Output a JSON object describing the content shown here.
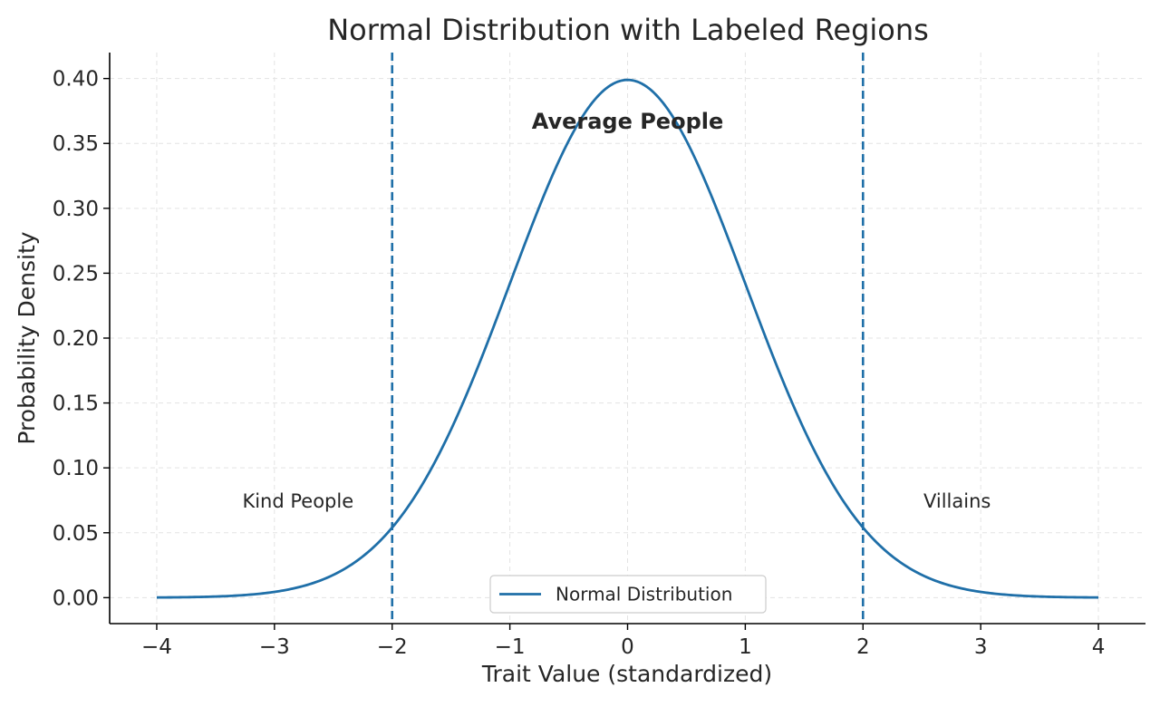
{
  "chart_data": {
    "type": "line",
    "title": "Normal Distribution with Labeled Regions",
    "xlabel": "Trait Value (standardized)",
    "ylabel": "Probability Density",
    "xlim": [
      -4.4,
      4.4
    ],
    "ylim": [
      -0.02,
      0.42
    ],
    "x_ticks": [
      -4,
      -3,
      -2,
      -1,
      0,
      1,
      2,
      3,
      4
    ],
    "x_tick_labels": [
      "−4",
      "−3",
      "−2",
      "−1",
      "0",
      "1",
      "2",
      "3",
      "4"
    ],
    "y_ticks": [
      0.0,
      0.05,
      0.1,
      0.15,
      0.2,
      0.25,
      0.3,
      0.35,
      0.4
    ],
    "y_tick_labels": [
      "0.00",
      "0.05",
      "0.10",
      "0.15",
      "0.20",
      "0.25",
      "0.30",
      "0.35",
      "0.40"
    ],
    "grid": true,
    "series": [
      {
        "name": "Normal Distribution",
        "color": "#1f6fa8",
        "function": "standard-normal-pdf",
        "mean": 0,
        "std": 1,
        "x_range": [
          -4,
          4
        ]
      }
    ],
    "vlines": [
      {
        "x": -2,
        "style": "dashed",
        "color": "#1f6fa8"
      },
      {
        "x": 2,
        "style": "dashed",
        "color": "#1f6fa8"
      }
    ],
    "annotations": [
      {
        "text": "Kind People",
        "x": -2.8,
        "y": 0.075,
        "bold": false
      },
      {
        "text": "Average People",
        "x": 0,
        "y": 0.367,
        "bold": true
      },
      {
        "text": "Villains",
        "x": 2.8,
        "y": 0.075,
        "bold": false
      }
    ],
    "legend": {
      "position": "bottom-center",
      "entries": [
        "Normal Distribution"
      ]
    }
  }
}
